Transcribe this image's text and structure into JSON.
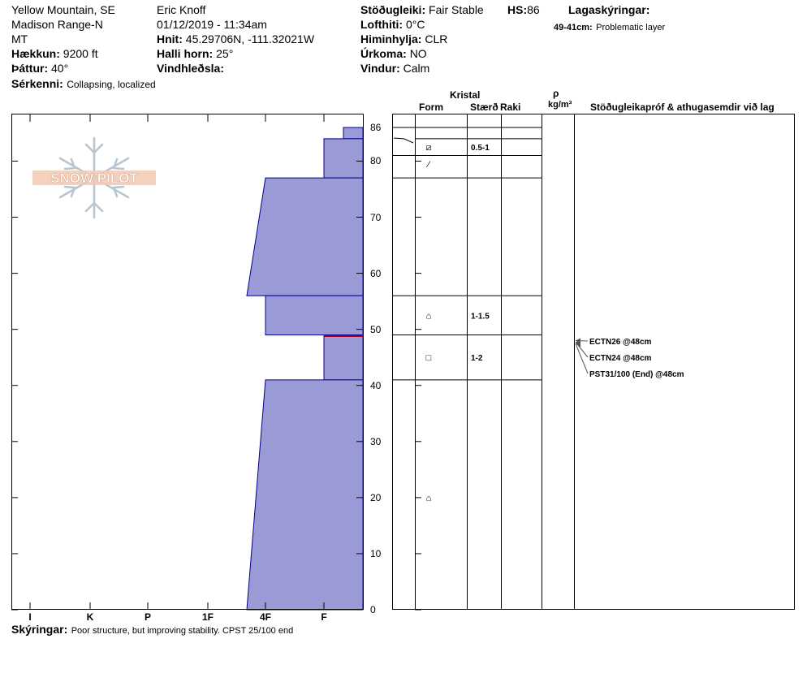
{
  "header": {
    "location": "Yellow Mountain, SE",
    "range": "Madison Range-N",
    "state": "MT",
    "elevation_label": "Hækkun:",
    "elevation_value": "9200 ft",
    "aspect_label": "Þáttur:",
    "aspect_value": "40°",
    "features_label": "Sérkenni:",
    "features_value": "Collapsing, localized",
    "observer": "Eric Knoff",
    "datetime": "01/12/2019 - 11:34am",
    "coords_label": "Hnit:",
    "coords_value": "45.29706N, -111.32021W",
    "slope_label": "Halli horn:",
    "slope_value": "25°",
    "windload_label": "Vindhleðsla:",
    "windload_value": "",
    "stability_label": "Stöðugleiki:",
    "stability_value": "Fair Stable",
    "hs_label": "HS:",
    "hs_value": "86",
    "airtemp_label": "Lofthiti:",
    "airtemp_value": "0°C",
    "sky_label": "Himinhylja:",
    "sky_value": "CLR",
    "precip_label": "Úrkoma:",
    "precip_value": "NO",
    "wind_label": "Vindur:",
    "wind_value": "Calm",
    "legend_label": "Lagaskýringar:",
    "legend_range": "49-41cm:",
    "legend_text": "Problematic layer"
  },
  "logo": {
    "text": "SNOW PILOT"
  },
  "columns": {
    "crystal": "Kristal",
    "form": "Form",
    "size": "Stærð",
    "moisture": "Raki",
    "rho": "ρ",
    "density_unit": "kg/m³",
    "tests": "Stöðugleikapróf & athugasemdir við lag"
  },
  "hardness_ticks": [
    "I",
    "K",
    "P",
    "1F",
    "4F",
    "F"
  ],
  "depth_ticks": [
    "86",
    "80",
    "70",
    "60",
    "50",
    "40",
    "30",
    "20",
    "10",
    "0"
  ],
  "chart_data": {
    "type": "profile",
    "y_unit": "cm",
    "ylim": [
      0,
      86
    ],
    "hardness_scale": [
      "I",
      "K",
      "P",
      "1F",
      "4F",
      "F"
    ],
    "layers": [
      {
        "top": 86,
        "bottom": 84,
        "hardness_top": "F+",
        "hardness_bottom": "F+"
      },
      {
        "top": 84,
        "bottom": 77,
        "hardness_top": "F",
        "hardness_bottom": "F"
      },
      {
        "top": 77,
        "bottom": 56,
        "hardness_top": "4F",
        "hardness_bottom": "4F-"
      },
      {
        "top": 56,
        "bottom": 49,
        "hardness_top": "4F",
        "hardness_bottom": "4F"
      },
      {
        "top": 49,
        "bottom": 41,
        "hardness_top": "F",
        "hardness_bottom": "F"
      },
      {
        "top": 41,
        "bottom": 0,
        "hardness_top": "4F",
        "hardness_bottom": "4F-"
      }
    ],
    "problem_layer_depth": 48.8,
    "temperature_profile": [
      [
        86,
        84.3
      ],
      [
        85,
        84.1
      ],
      [
        83.5,
        82.8
      ]
    ],
    "crystals": [
      {
        "depth": 82.5,
        "form": "⧄",
        "size": "0.5-1"
      },
      {
        "depth": 79.5,
        "form": "⁄",
        "size": ""
      },
      {
        "depth": 52.5,
        "form": "⌂",
        "size": "1-1.5"
      },
      {
        "depth": 45,
        "form": "□",
        "size": "1-2"
      },
      {
        "depth": 20,
        "form": "⌂",
        "size": ""
      }
    ],
    "layer_boundaries": [
      84,
      81,
      77,
      56,
      49,
      41
    ],
    "tests": [
      {
        "text": "ECTN26 @48cm",
        "depth": 48
      },
      {
        "text": "ECTN24 @48cm",
        "depth": 48
      },
      {
        "text": "PST31/100 (End) @48cm",
        "depth": 48
      }
    ]
  },
  "footer": {
    "notes_label": "Skýringar:",
    "notes_value": "Poor structure, but improving stability. CPST 25/100 end"
  }
}
